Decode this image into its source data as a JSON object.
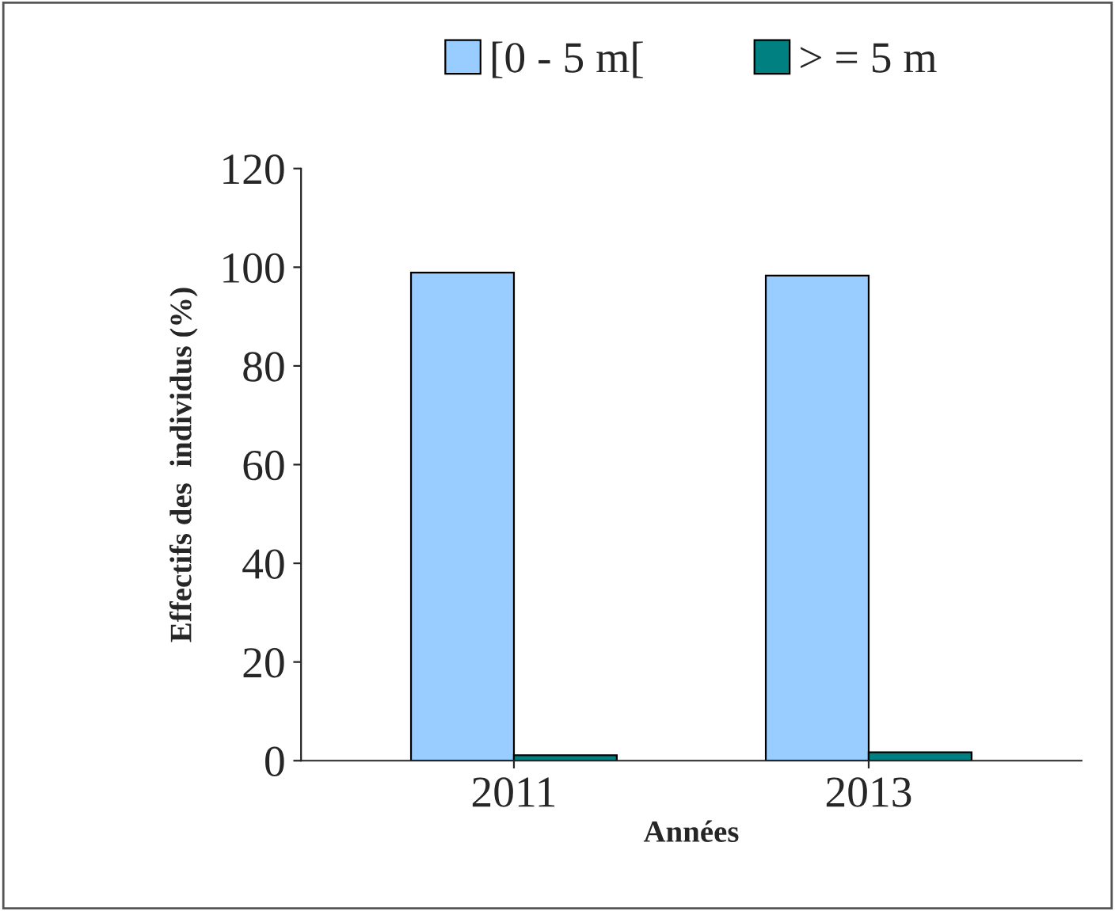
{
  "chart_data": {
    "type": "bar",
    "xlabel": "Années",
    "ylabel": "Effectifs des  individus (%)",
    "categories": [
      "2011",
      "2013"
    ],
    "series": [
      {
        "name": "[0 - 5 m[",
        "color": "#99ccff",
        "values": [
          98.9,
          98.3
        ]
      },
      {
        "name": "> = 5 m",
        "color": "#008080",
        "values": [
          1.1,
          1.7
        ]
      }
    ],
    "ylim": [
      0,
      120
    ],
    "yticks": [
      0,
      20,
      40,
      60,
      80,
      100,
      120
    ],
    "grid": false,
    "legend": "top"
  }
}
